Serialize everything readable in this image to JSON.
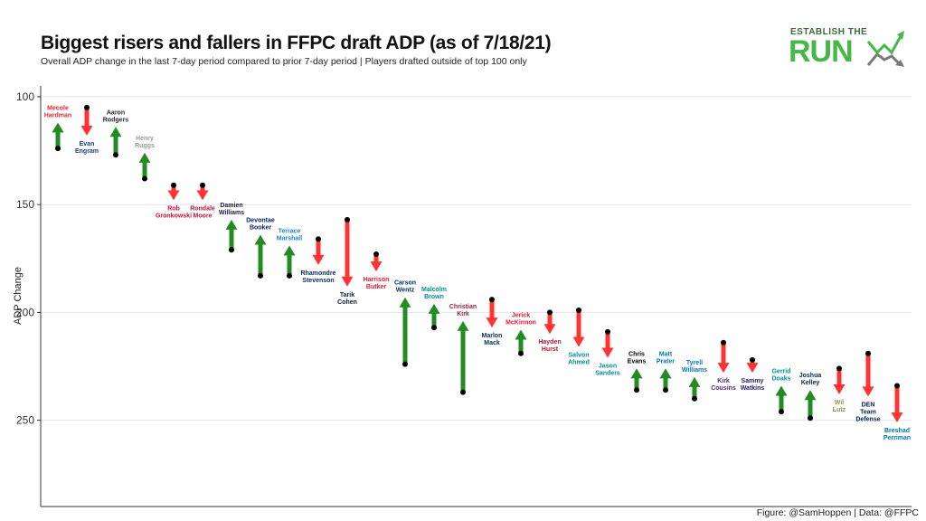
{
  "title": "Biggest risers and fallers in FFPC draft ADP (as of 7/18/21)",
  "subtitle": "Overall ADP change in the last 7-day period compared to prior 7-day period | Players drafted outside of top 100 only",
  "caption": "Figure: @SamHoppen | Data: @FFPC",
  "logo": {
    "top_text": "ESTABLISH THE",
    "main_text": "RUN",
    "colors": {
      "green": "#47b848",
      "gray": "#7a7a7a"
    }
  },
  "colors": {
    "riser": "#228b22",
    "faller": "#ff3333",
    "dot": "#000000"
  },
  "chart_data": {
    "type": "arrow",
    "ylabel": "ADP Change",
    "xlabel": "",
    "ylim": [
      95,
      290
    ],
    "y_reversed": true,
    "yticks": [
      100,
      150,
      200,
      250
    ],
    "grid": "horizontal",
    "points": [
      {
        "name": [
          "Mecole",
          "Hardman"
        ],
        "from": 124,
        "to": 112,
        "color": "#d62839"
      },
      {
        "name": [
          "Evan",
          "Engram"
        ],
        "from": 105,
        "to": 118,
        "color": "#1d3b7a"
      },
      {
        "name": [
          "Aaron",
          "Rodgers"
        ],
        "from": 127,
        "to": 114,
        "color": "#2b2b2b"
      },
      {
        "name": [
          "Henry",
          "Ruggs"
        ],
        "from": 138,
        "to": 126,
        "color": "#9a9a9a"
      },
      {
        "name": [
          "Rob",
          "Gronkowski"
        ],
        "from": 141,
        "to": 148,
        "color": "#c8102e"
      },
      {
        "name": [
          "Rondale",
          "Moore"
        ],
        "from": 141,
        "to": 148,
        "color": "#b01b3c"
      },
      {
        "name": [
          "Damien",
          "Williams"
        ],
        "from": 171,
        "to": 157,
        "color": "#1a1a3a"
      },
      {
        "name": [
          "Devontae",
          "Booker"
        ],
        "from": 183,
        "to": 164,
        "color": "#0b2265"
      },
      {
        "name": [
          "Terrace",
          "Marshall"
        ],
        "from": 183,
        "to": 169,
        "color": "#1b88c8"
      },
      {
        "name": [
          "Rhamondre",
          "Stevenson"
        ],
        "from": 166,
        "to": 178,
        "color": "#0a2a5a"
      },
      {
        "name": [
          "Tarik",
          "Cohen"
        ],
        "from": 157,
        "to": 188,
        "color": "#0b1f3a"
      },
      {
        "name": [
          "Harrison",
          "Butker"
        ],
        "from": 173,
        "to": 181,
        "color": "#e31837"
      },
      {
        "name": [
          "Carson",
          "Wentz"
        ],
        "from": 224,
        "to": 193,
        "color": "#002c5f"
      },
      {
        "name": [
          "Malcolm",
          "Brown"
        ],
        "from": 207,
        "to": 196,
        "color": "#008e97"
      },
      {
        "name": [
          "Christian",
          "Kirk"
        ],
        "from": 237,
        "to": 204,
        "color": "#97233f"
      },
      {
        "name": [
          "Marlon",
          "Mack"
        ],
        "from": 194,
        "to": 207,
        "color": "#002c5f"
      },
      {
        "name": [
          "Jerick",
          "McKinnon"
        ],
        "from": 219,
        "to": 208,
        "color": "#e31837"
      },
      {
        "name": [
          "Hayden",
          "Hurst"
        ],
        "from": 200,
        "to": 210,
        "color": "#a71930"
      },
      {
        "name": [
          "Salvon",
          "Ahmed"
        ],
        "from": 199,
        "to": 216,
        "color": "#008e97"
      },
      {
        "name": [
          "Jason",
          "Sanders"
        ],
        "from": 209,
        "to": 221,
        "color": "#008e97"
      },
      {
        "name": [
          "Chris",
          "Evans"
        ],
        "from": 236,
        "to": 226,
        "color": "#000000"
      },
      {
        "name": [
          "Matt",
          "Prater"
        ],
        "from": 236,
        "to": 226,
        "color": "#0076b6"
      },
      {
        "name": [
          "Tyrell",
          "Williams"
        ],
        "from": 240,
        "to": 230,
        "color": "#0076b6"
      },
      {
        "name": [
          "Kirk",
          "Cousins"
        ],
        "from": 214,
        "to": 228,
        "color": "#4f2683"
      },
      {
        "name": [
          "Sammy",
          "Watkins"
        ],
        "from": 222,
        "to": 228,
        "color": "#241773"
      },
      {
        "name": [
          "Gerrid",
          "Doaks"
        ],
        "from": 246,
        "to": 234,
        "color": "#008e97"
      },
      {
        "name": [
          "Joshua",
          "Kelley"
        ],
        "from": 249,
        "to": 236,
        "color": "#0a2342"
      },
      {
        "name": [
          "Wil",
          "Lutz"
        ],
        "from": 226,
        "to": 238,
        "color": "#9f8958"
      },
      {
        "name": [
          "DEN",
          "Team",
          "Defense"
        ],
        "from": 219,
        "to": 239,
        "color": "#002244"
      },
      {
        "name": [
          "Breshad",
          "Perriman"
        ],
        "from": 234,
        "to": 251,
        "color": "#0076b6"
      }
    ]
  }
}
